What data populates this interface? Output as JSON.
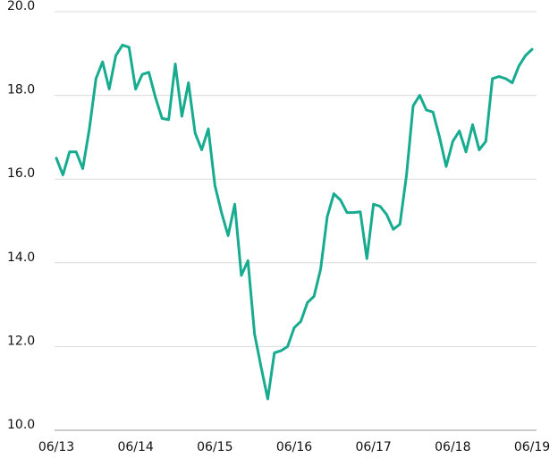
{
  "chart_data": {
    "type": "line",
    "categories": [
      "06/13",
      null,
      null,
      null,
      null,
      null,
      null,
      null,
      null,
      null,
      null,
      null,
      "06/14",
      null,
      null,
      null,
      null,
      null,
      null,
      null,
      null,
      null,
      null,
      null,
      "06/15",
      null,
      null,
      null,
      null,
      null,
      null,
      null,
      null,
      null,
      null,
      null,
      "06/16",
      null,
      null,
      null,
      null,
      null,
      null,
      null,
      null,
      null,
      null,
      null,
      "06/17",
      null,
      null,
      null,
      null,
      null,
      null,
      null,
      null,
      null,
      null,
      null,
      "06/18",
      null,
      null,
      null,
      null,
      null,
      null,
      null,
      null,
      null,
      null,
      null,
      "06/19"
    ],
    "series": [
      {
        "color": "#17ab8f",
        "values": [
          16.5,
          16.1,
          16.65,
          16.65,
          16.25,
          17.2,
          18.4,
          18.8,
          18.15,
          18.95,
          19.2,
          19.15,
          18.15,
          18.5,
          18.55,
          17.95,
          17.45,
          17.42,
          18.75,
          17.5,
          18.3,
          17.1,
          16.7,
          17.2,
          15.85,
          15.2,
          14.65,
          15.4,
          13.7,
          14.05,
          12.3,
          11.5,
          10.75,
          11.85,
          11.9,
          12.0,
          12.45,
          12.6,
          13.05,
          13.2,
          13.85,
          15.1,
          15.65,
          15.5,
          15.2,
          15.2,
          15.22,
          14.1,
          15.4,
          15.35,
          15.15,
          14.8,
          14.92,
          16.1,
          17.75,
          18.0,
          17.65,
          17.6,
          17.0,
          16.3,
          16.9,
          17.15,
          16.65,
          17.3,
          16.7,
          16.9,
          18.4,
          18.45,
          18.4,
          18.3,
          18.7,
          18.95,
          19.1
        ]
      }
    ],
    "ylim": [
      10,
      20
    ],
    "yticks": [
      {
        "value": 10,
        "label": "10.0"
      },
      {
        "value": 12,
        "label": "12.0"
      },
      {
        "value": 14,
        "label": "14.0"
      },
      {
        "value": 16,
        "label": "16.0"
      },
      {
        "value": 18,
        "label": "18.0"
      },
      {
        "value": 20,
        "label": "20.0"
      }
    ],
    "grid": true
  }
}
